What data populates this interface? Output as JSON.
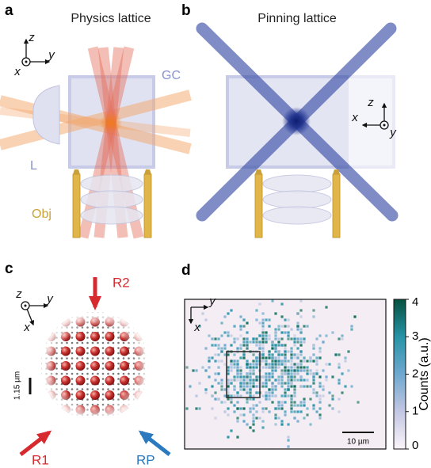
{
  "panel_a": {
    "label": "a",
    "title": "Physics lattice",
    "axis_z": "z",
    "axis_y": "y",
    "axis_x": "x",
    "glass_cell": "GC",
    "lens": "L",
    "objective": "Obj"
  },
  "panel_b": {
    "label": "b",
    "title": "Pinning lattice",
    "axis_z": "z",
    "axis_x": "x",
    "axis_y": "y"
  },
  "panel_c": {
    "label": "c",
    "axis_z": "z",
    "axis_y": "y",
    "axis_x": "x",
    "beam_r2": "R2",
    "beam_r1": "R1",
    "beam_rp": "RP",
    "scale_bar": "1.15 µm"
  },
  "panel_d": {
    "label": "d",
    "axis_y": "y",
    "axis_x": "x",
    "scale_bar": "10 µm",
    "colorbar": {
      "label": "Counts (a.u.)",
      "lim": [
        0,
        4
      ],
      "ticks": [
        0,
        1,
        2,
        3,
        4
      ]
    }
  }
}
